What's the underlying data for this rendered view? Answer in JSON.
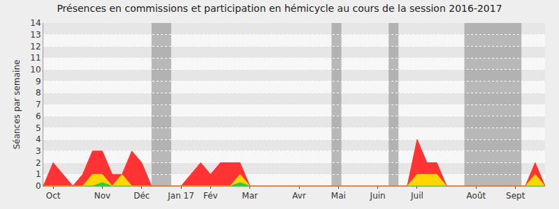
{
  "chart_data": {
    "type": "area",
    "title": "Présences en commissions et participation en hémicycle au cours de la session 2016-2017",
    "y_label": "Séances par semaine",
    "categories": [
      null,
      "Oct",
      null,
      null,
      null,
      null,
      "Nov",
      null,
      null,
      null,
      "Déc",
      null,
      null,
      null,
      "Jan 17",
      null,
      null,
      "Fév",
      null,
      null,
      null,
      "Mar",
      null,
      null,
      null,
      null,
      "Avr",
      null,
      null,
      null,
      "Mai",
      null,
      null,
      null,
      "Juin",
      null,
      null,
      null,
      "Juil",
      null,
      null,
      null,
      null,
      null,
      "Août",
      null,
      null,
      null,
      "Sept",
      null,
      null,
      null
    ],
    "series": [
      {
        "color": "#33cc33",
        "values": [
          0,
          0,
          0,
          0,
          0,
          0,
          0.3,
          0,
          0,
          0,
          0,
          0,
          0,
          0,
          0,
          0,
          0,
          0,
          0,
          0,
          0.3,
          0,
          0,
          0,
          0,
          0,
          0,
          0,
          0,
          0,
          0,
          0,
          0,
          0,
          0,
          0,
          0,
          0,
          0,
          0,
          0,
          0,
          0,
          0,
          0,
          0,
          0,
          0,
          0,
          0,
          0,
          0
        ]
      },
      {
        "color": "#ffd700",
        "values": [
          0,
          0,
          0,
          0,
          0,
          1,
          0.7,
          0,
          1,
          0,
          0,
          0,
          0,
          0,
          0,
          0,
          0,
          0,
          0,
          0,
          0.7,
          0,
          0,
          0,
          0,
          0,
          0,
          0,
          0,
          0,
          0,
          0,
          0,
          0,
          0,
          0,
          0,
          0,
          1,
          1,
          1,
          0,
          0,
          0,
          0,
          0,
          0,
          0,
          0,
          0,
          1,
          0
        ]
      },
      {
        "color": "#ff3333",
        "values": [
          0,
          2,
          1,
          0,
          1,
          2,
          2,
          1,
          0,
          3,
          2,
          0,
          0,
          0,
          0,
          1,
          2,
          1,
          2,
          2,
          1,
          0,
          0,
          0,
          0,
          0,
          0,
          0,
          0,
          0,
          0,
          0,
          0,
          0,
          0,
          0,
          0,
          0,
          3,
          1,
          1,
          0,
          0,
          0,
          0,
          0,
          0,
          0,
          0,
          0,
          1,
          0
        ]
      }
    ],
    "stacked": true,
    "shaded_ranges": [
      [
        11,
        13
      ],
      [
        29.3,
        30.3
      ],
      [
        35.1,
        36.1
      ],
      [
        42.8,
        48.6
      ]
    ],
    "ylim": [
      0,
      14
    ],
    "yticks": [
      0,
      1,
      2,
      3,
      4,
      5,
      6,
      7,
      8,
      9,
      10,
      11,
      12,
      13,
      14
    ],
    "grid": true
  }
}
